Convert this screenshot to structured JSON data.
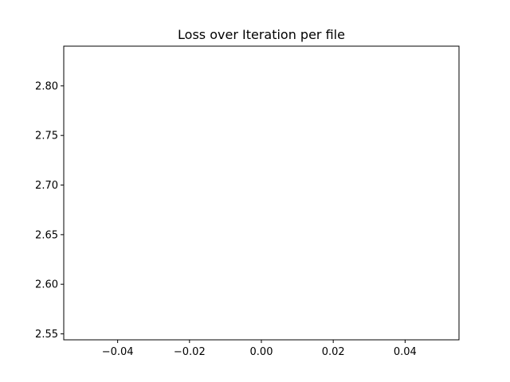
{
  "chart_data": {
    "type": "line",
    "title": "Loss over Iteration per file",
    "xlabel": "",
    "ylabel": "",
    "series": [],
    "xlim": [
      -0.055,
      0.055
    ],
    "ylim": [
      2.544,
      2.84
    ],
    "xticks": [
      -0.04,
      -0.02,
      0.0,
      0.02,
      0.04
    ],
    "xtick_labels": [
      "−0.04",
      "−0.02",
      "0.00",
      "0.02",
      "0.04"
    ],
    "yticks": [
      2.55,
      2.6,
      2.65,
      2.7,
      2.75,
      2.8
    ],
    "ytick_labels": [
      "2.55",
      "2.60",
      "2.65",
      "2.70",
      "2.75",
      "2.80"
    ],
    "grid": false,
    "legend": false
  }
}
